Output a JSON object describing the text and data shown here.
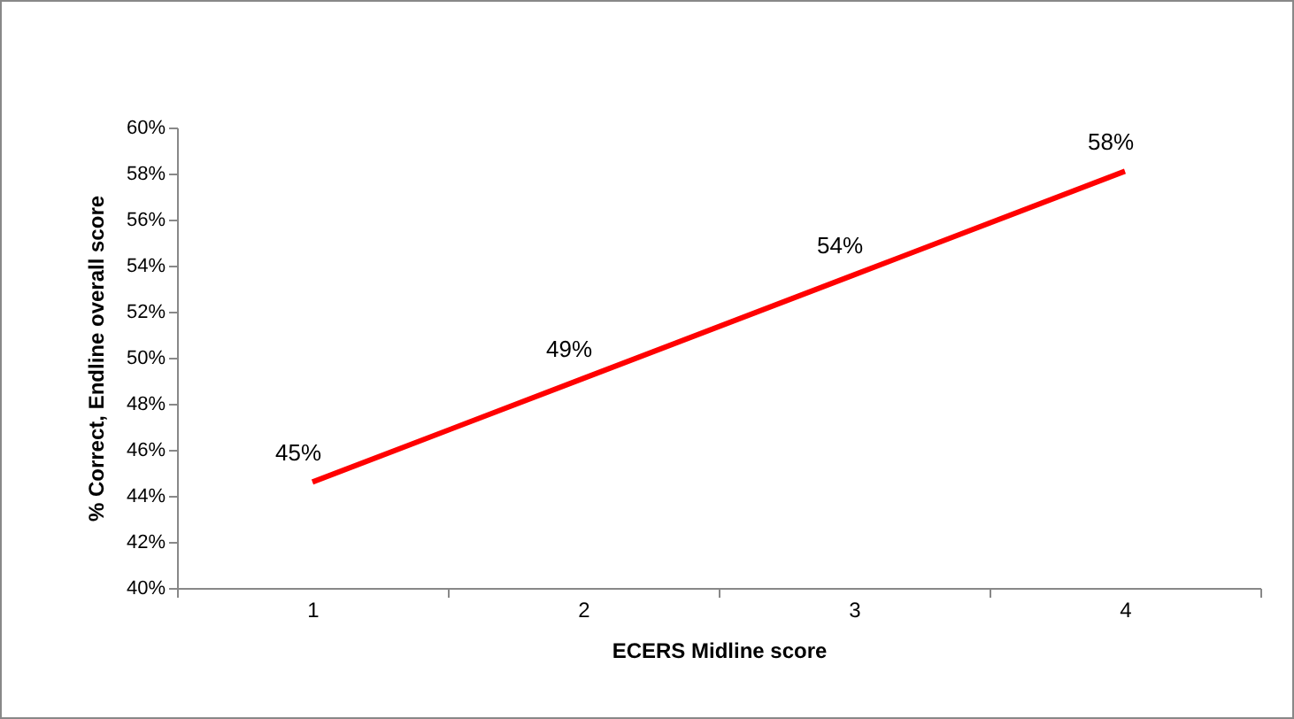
{
  "chart_data": {
    "type": "line",
    "xlabel": "ECERS Midline score",
    "ylabel": "% Correct, Endline overall score",
    "categories": [
      "1",
      "2",
      "3",
      "4"
    ],
    "series": [
      {
        "color": "#ff0000",
        "values": [
          44.6,
          49.1,
          53.6,
          58.1
        ],
        "value_labels": [
          "45%",
          "49%",
          "54%",
          "58%"
        ]
      }
    ],
    "ylim": [
      40,
      60
    ],
    "yticks": [
      {
        "value": 40,
        "label": "40%"
      },
      {
        "value": 42,
        "label": "42%"
      },
      {
        "value": 44,
        "label": "44%"
      },
      {
        "value": 46,
        "label": "46%"
      },
      {
        "value": 48,
        "label": "48%"
      },
      {
        "value": 50,
        "label": "50%"
      },
      {
        "value": 52,
        "label": "52%"
      },
      {
        "value": 54,
        "label": "54%"
      },
      {
        "value": 56,
        "label": "56%"
      },
      {
        "value": 58,
        "label": "58%"
      },
      {
        "value": 60,
        "label": "60%"
      }
    ],
    "grid": false,
    "marker": "none",
    "line_style": "solid"
  }
}
